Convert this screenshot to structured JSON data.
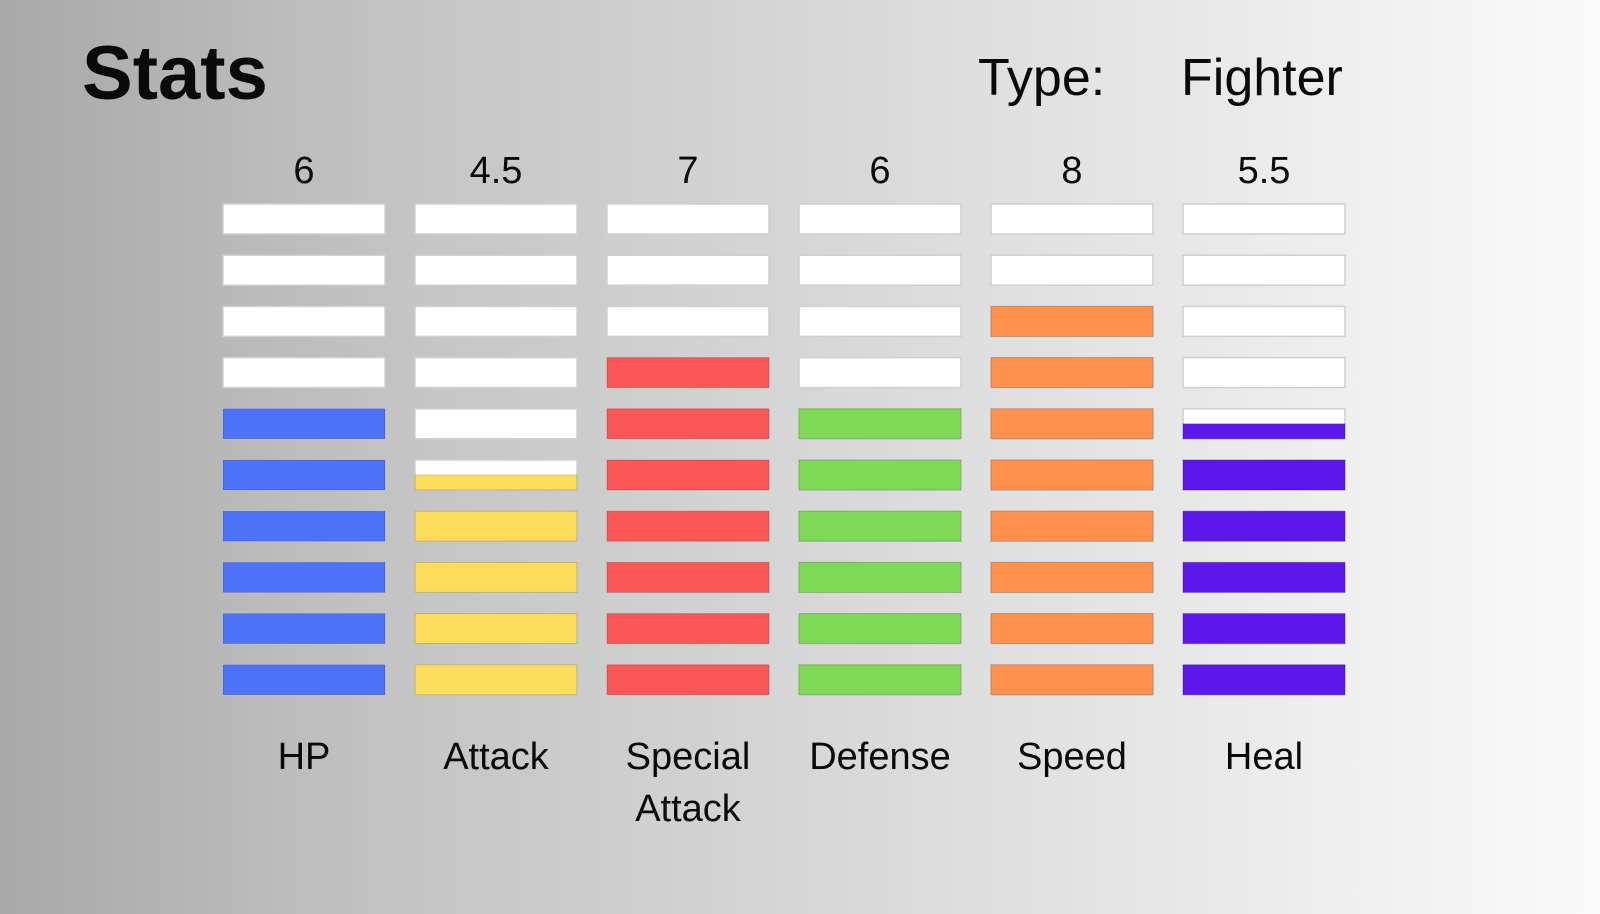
{
  "header": {
    "title": "Stats",
    "type_label": "Type:",
    "type_value": "Fighter"
  },
  "chart_data": {
    "type": "bar",
    "segments_per_bar": 10,
    "categories": [
      "HP",
      "Attack",
      "Special Attack",
      "Defense",
      "Speed",
      "Heal"
    ],
    "values": [
      6,
      4.5,
      7,
      6,
      8,
      5.5
    ],
    "value_labels": [
      "6",
      "4.5",
      "7",
      "6",
      "8",
      "5.5"
    ],
    "colors": [
      "#4f72fa",
      "#fddc5c",
      "#fd5657",
      "#7ed957",
      "#ff914d",
      "#5e17eb"
    ],
    "empty_color": "#ffffff",
    "ylim": [
      0,
      10
    ]
  }
}
